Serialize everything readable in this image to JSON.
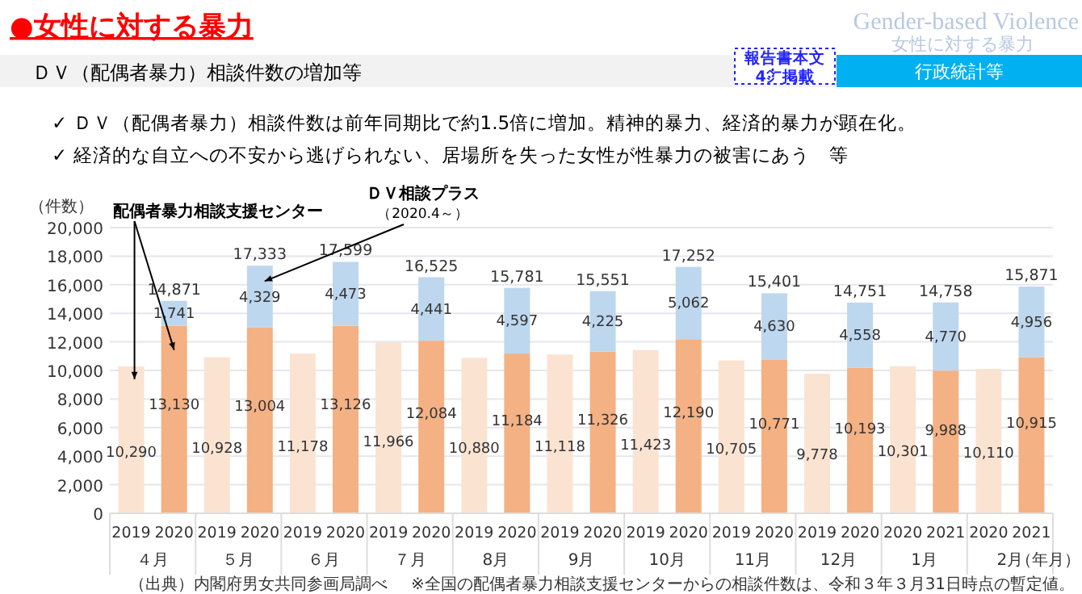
{
  "chart_data": {
    "type": "bar",
    "stacked": true,
    "title": "●女性に対する暴力",
    "subtitle": "ＤＶ（配偶者暴力）相談件数の増加等",
    "ylabel": "（件数）",
    "xlabel": "（年月）",
    "categories": [
      "2019",
      "2020",
      "2019",
      "2020",
      "2019",
      "2020",
      "2019",
      "2020",
      "2019",
      "2020",
      "2019",
      "2020",
      "2019",
      "2020",
      "2019",
      "2020",
      "2019",
      "2020",
      "2020",
      "2021",
      "2020",
      "2021"
    ],
    "series": [
      {
        "color": "#fbe3d2",
        "values": [
          10290,
          null,
          10928,
          null,
          11178,
          null,
          11966,
          null,
          10880,
          null,
          11118,
          null,
          11423,
          null,
          10705,
          null,
          9778,
          null,
          10301,
          null,
          10110,
          null
        ],
        "value_labels": [
          "10,290",
          null,
          "10,928",
          null,
          "11,178",
          null,
          "11,966",
          null,
          "10,880",
          null,
          "11,118",
          null,
          "11,423",
          null,
          "10,705",
          null,
          "9,778",
          null,
          "10,301",
          null,
          "10,110",
          null
        ]
      },
      {
        "color": "#f4b183",
        "values": [
          null,
          13130,
          null,
          13004,
          null,
          13126,
          null,
          12084,
          null,
          11184,
          null,
          11326,
          null,
          12190,
          null,
          10771,
          null,
          10193,
          null,
          9988,
          null,
          10915
        ],
        "value_labels": [
          null,
          "13,130",
          null,
          "13,004",
          null,
          "13,126",
          null,
          "12,084",
          null,
          "11,184",
          null,
          "11,326",
          null,
          "12,190",
          null,
          "10,771",
          null,
          "10,193",
          null,
          "9,988",
          null,
          "10,915"
        ]
      },
      {
        "color": "#bdd7ee",
        "values": [
          null,
          1741,
          null,
          4329,
          null,
          4473,
          null,
          4441,
          null,
          4597,
          null,
          4225,
          null,
          5062,
          null,
          4630,
          null,
          4558,
          null,
          4770,
          null,
          4956
        ],
        "value_labels": [
          null,
          "1,741",
          null,
          "4,329",
          null,
          "4,473",
          null,
          "4,441",
          null,
          "4,597",
          null,
          "4,225",
          null,
          "5,062",
          null,
          "4,630",
          null,
          "4,558",
          null,
          "4,770",
          null,
          "4,956"
        ]
      }
    ],
    "totals": [
      null,
      "14,871",
      null,
      "17,333",
      null,
      "17,599",
      null,
      "16,525",
      null,
      "15,781",
      null,
      "15,551",
      null,
      "17,252",
      null,
      "15,401",
      null,
      "14,751",
      null,
      "14,758",
      null,
      "15,871"
    ],
    "ylim": [
      0,
      20000
    ],
    "yticks": [
      0,
      {
        "value": 2000,
        "label": "2,000"
      },
      {
        "value": 4000,
        "label": "4,000"
      },
      {
        "value": 6000,
        "label": "6,000"
      },
      {
        "value": 8000,
        "label": "8,000"
      },
      {
        "value": 10000,
        "label": "10,000"
      },
      {
        "value": 12000,
        "label": "12,000"
      },
      {
        "value": 14000,
        "label": "14,000"
      },
      {
        "value": 16000,
        "label": "16,000"
      },
      {
        "value": 18000,
        "label": "18,000"
      },
      {
        "value": 20000,
        "label": "20,000"
      }
    ],
    "grid": "y",
    "annotations": [
      "Gender-based Violence",
      "女性に対する暴力",
      "報告書本文\n4㌻掲載",
      "行政統計等",
      "✓ ＤＶ（配偶者暴力）相談件数は前年同期比で約1.5倍に増加。精神的暴力、経済的暴力が顕在化。",
      "✓ 経済的な自立への不安から逃げられない、居場所を失った女性が性暴力の被害にあう　等",
      "配偶者暴力相談支援センター",
      "ＤＶ相談プラス",
      "（2020.4～）",
      "（出典）内閣府男女共同参画局調べ",
      "※全国の配偶者暴力相談支援センターからの相談件数は、令和３年３月31日時点の暫定値。",
      "４月",
      "５月",
      "６月",
      "７月",
      "8月",
      "9月",
      "10月",
      "11月",
      "12月",
      "1月",
      "2月"
    ]
  }
}
